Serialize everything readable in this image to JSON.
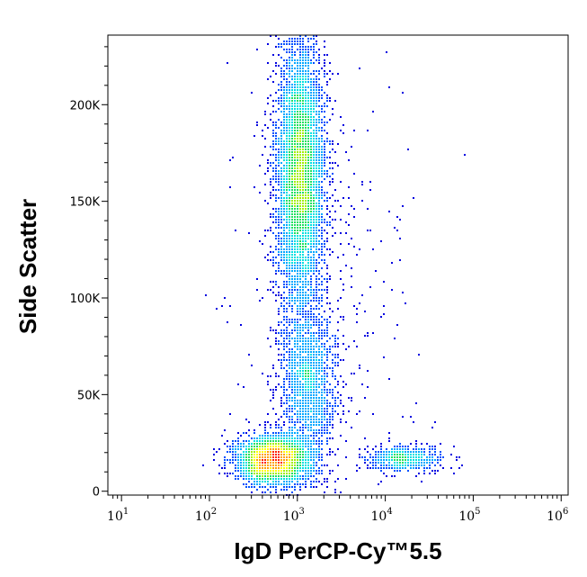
{
  "chart_data": {
    "type": "scatter",
    "subtype": "flow-cytometry-density-dot-plot",
    "title": "",
    "xlabel": "IgD PerCP-Cy™5.5",
    "ylabel": "Side Scatter",
    "x_scale": "log",
    "xlim": [
      7,
      1200000
    ],
    "ylim": [
      -2000,
      236000
    ],
    "x_ticks": [
      {
        "value": 10,
        "base": "10",
        "exp": "1"
      },
      {
        "value": 100,
        "base": "10",
        "exp": "2"
      },
      {
        "value": 1000,
        "base": "10",
        "exp": "3"
      },
      {
        "value": 10000,
        "base": "10",
        "exp": "4"
      },
      {
        "value": 100000,
        "base": "10",
        "exp": "5"
      },
      {
        "value": 1000000,
        "base": "10",
        "exp": "6"
      }
    ],
    "y_ticks": [
      {
        "value": 0,
        "label": "0"
      },
      {
        "value": 50000,
        "label": "50K"
      },
      {
        "value": 100000,
        "label": "100K"
      },
      {
        "value": 150000,
        "label": "150K"
      },
      {
        "value": 200000,
        "label": "200K"
      }
    ],
    "grid": false,
    "legend": "none",
    "density_colors": [
      "#0000e0",
      "#0050ff",
      "#00a8ff",
      "#00e0e0",
      "#20e060",
      "#a0f000",
      "#ffff00",
      "#ffa000",
      "#ff2000"
    ],
    "populations": [
      {
        "name": "",
        "x_log10_center": 3.04,
        "y_center": 165000,
        "x_log10_sd": 0.14,
        "y_sd": 36000,
        "points": 5200
      },
      {
        "name": "",
        "x_log10_center": 3.12,
        "y_center": 55000,
        "x_log10_sd": 0.17,
        "y_sd": 20000,
        "points": 1600
      },
      {
        "name": "",
        "x_log10_center": 2.72,
        "y_center": 16000,
        "x_log10_sd": 0.22,
        "y_sd": 6500,
        "points": 2800
      },
      {
        "name": "",
        "x_log10_center": 4.22,
        "y_center": 16500,
        "x_log10_sd": 0.22,
        "y_sd": 3200,
        "points": 550
      },
      {
        "name": "",
        "x_log10_center": 3.35,
        "y_center": 100000,
        "x_log10_sd": 0.55,
        "y_sd": 60000,
        "points": 350
      }
    ]
  }
}
